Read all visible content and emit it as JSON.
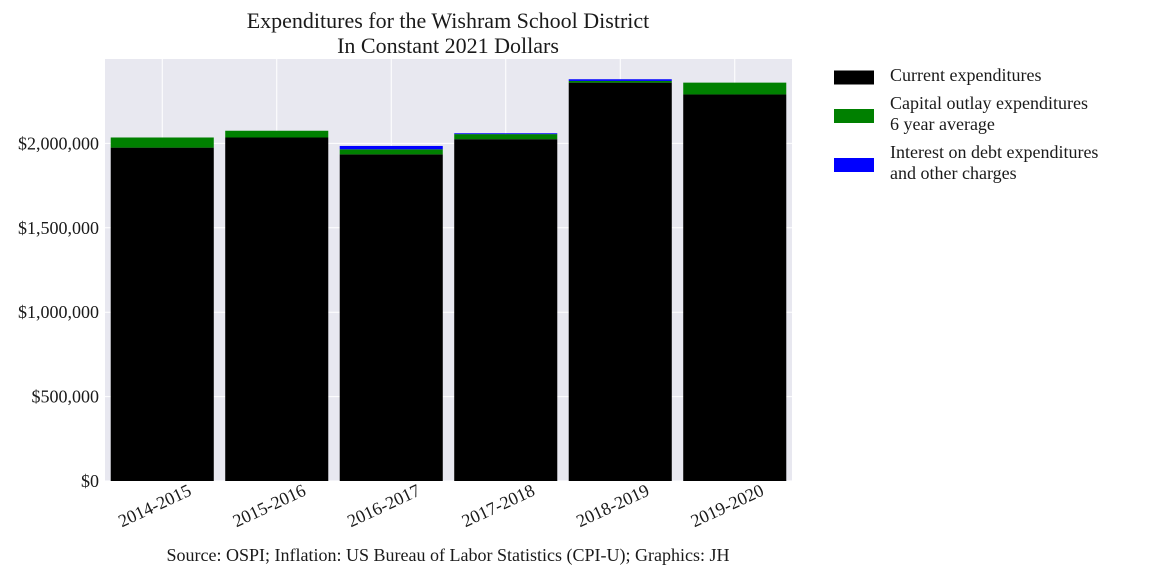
{
  "chart_data": {
    "type": "bar",
    "stacked": true,
    "title": [
      "Expenditures for the Wishram School District",
      "In Constant 2021 Dollars"
    ],
    "categories": [
      "2014-2015",
      "2015-2016",
      "2016-2017",
      "2017-2018",
      "2018-2019",
      "2019-2020"
    ],
    "series": [
      {
        "name": "Current expenditures",
        "color": "#000000",
        "values": [
          1975000,
          2035000,
          1935000,
          2025000,
          2360000,
          2290000
        ]
      },
      {
        "name": [
          "Capital outlay expenditures",
          "6 year average"
        ],
        "color": "#008000",
        "values": [
          60000,
          40000,
          30000,
          30000,
          10000,
          70000
        ]
      },
      {
        "name": [
          "Interest on debt expenditures",
          "and other charges"
        ],
        "color": "#0000ff",
        "values": [
          0,
          0,
          20000,
          5000,
          10000,
          0
        ]
      }
    ],
    "ylim": [
      0,
      2500000
    ],
    "yticks": [
      0,
      500000,
      1000000,
      1500000,
      2000000
    ],
    "ytick_labels": [
      "$0",
      "$500,000",
      "$1,000,000",
      "$1,500,000",
      "$2,000,000"
    ],
    "grid": true,
    "legend_position": "outside right, top",
    "source": "Source: OSPI; Inflation: US Bureau of Labor Statistics (CPI-U); Graphics: JH"
  }
}
